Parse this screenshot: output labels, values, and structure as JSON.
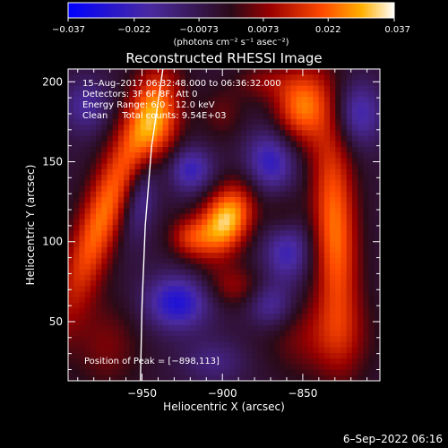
{
  "chart_data": {
    "type": "heatmap",
    "title": "Reconstructed RHESSI Image",
    "xlabel": "Heliocentric X (arcsec)",
    "ylabel": "Heliocentric Y (arcsec)",
    "xlim": [
      -996,
      -802
    ],
    "ylim": [
      13,
      208
    ],
    "x_ticks": [
      -950,
      -900,
      -850
    ],
    "y_ticks": [
      50,
      100,
      150,
      200
    ],
    "colorbar": {
      "min": -0.037,
      "max": 0.037,
      "tick_labels": [
        "−0.037",
        "−0.022",
        "−0.0073",
        "0.0073",
        "0.022",
        "0.037"
      ],
      "tick_values": [
        -0.037,
        -0.022,
        -0.0073,
        0.0073,
        0.022,
        0.037
      ],
      "units": "(photons cm⁻² s⁻¹ asec⁻²)"
    },
    "annotations": [
      "15–Aug–2017 06:32:48.000 to 06:36:32.000",
      "Detectors: 3F 6F 8F, Att 0",
      "Energy Range: 6.0 – 12.0 keV",
      "Clean     Total counts: 9.54E+03"
    ],
    "peak_label": "Position of Peak = [−898,113]",
    "peak": {
      "x": -898,
      "y": 113,
      "value": 0.037
    },
    "limb_curve": [
      [
        -937,
        208
      ],
      [
        -944,
        160
      ],
      [
        -948,
        110
      ],
      [
        -950,
        60
      ],
      [
        -951,
        13
      ]
    ],
    "blobs": [
      {
        "x": -898,
        "y": 113,
        "sx": 11,
        "sy": 17,
        "theta": 0.45,
        "amp": 0.037
      },
      {
        "x": -942,
        "y": 175,
        "sx": 11,
        "sy": 22,
        "theta": 0.15,
        "amp": 0.03
      },
      {
        "x": -921,
        "y": 103,
        "sx": 9,
        "sy": 9,
        "theta": 0,
        "amp": 0.016
      },
      {
        "x": -893,
        "y": 72,
        "sx": 12,
        "sy": 9,
        "theta": 0,
        "amp": 0.012
      },
      {
        "x": -975,
        "y": 115,
        "sx": 10,
        "sy": 48,
        "theta": 0.35,
        "amp": 0.028
      },
      {
        "x": -851,
        "y": 185,
        "sx": 12,
        "sy": 17,
        "theta": 0.1,
        "amp": 0.027
      },
      {
        "x": -830,
        "y": 108,
        "sx": 10,
        "sy": 50,
        "theta": -0.05,
        "amp": 0.028
      },
      {
        "x": -862,
        "y": 115,
        "sx": 8,
        "sy": 12,
        "theta": 0,
        "amp": 0.009
      },
      {
        "x": -900,
        "y": 180,
        "sx": 10,
        "sy": 12,
        "theta": 0,
        "amp": 0.008
      },
      {
        "x": -840,
        "y": 40,
        "sx": 22,
        "sy": 18,
        "theta": 0,
        "amp": 0.012
      },
      {
        "x": -972,
        "y": 35,
        "sx": 15,
        "sy": 20,
        "theta": 0,
        "amp": 0.01
      },
      {
        "x": -875,
        "y": 200,
        "sx": 12,
        "sy": 8,
        "theta": 0,
        "amp": 0.01
      },
      {
        "x": -920,
        "y": 145,
        "sx": 10,
        "sy": 10,
        "theta": 0,
        "amp": -0.02
      },
      {
        "x": -870,
        "y": 150,
        "sx": 11,
        "sy": 14,
        "theta": 0,
        "amp": -0.022
      },
      {
        "x": -860,
        "y": 95,
        "sx": 10,
        "sy": 14,
        "theta": 0,
        "amp": -0.02
      },
      {
        "x": -928,
        "y": 62,
        "sx": 14,
        "sy": 12,
        "theta": 0,
        "amp": -0.025
      },
      {
        "x": -815,
        "y": 180,
        "sx": 10,
        "sy": 14,
        "theta": 0,
        "amp": -0.018
      },
      {
        "x": -950,
        "y": 130,
        "sx": 7,
        "sy": 20,
        "theta": 0.2,
        "amp": -0.016
      },
      {
        "x": -985,
        "y": 185,
        "sx": 10,
        "sy": 12,
        "theta": 0,
        "amp": -0.014
      },
      {
        "x": -870,
        "y": 60,
        "sx": 10,
        "sy": 10,
        "theta": 0,
        "amp": -0.015
      },
      {
        "x": -905,
        "y": 25,
        "sx": 14,
        "sy": 10,
        "theta": 0,
        "amp": -0.01
      }
    ]
  },
  "footer_date": "6–Sep–2022 06:16"
}
